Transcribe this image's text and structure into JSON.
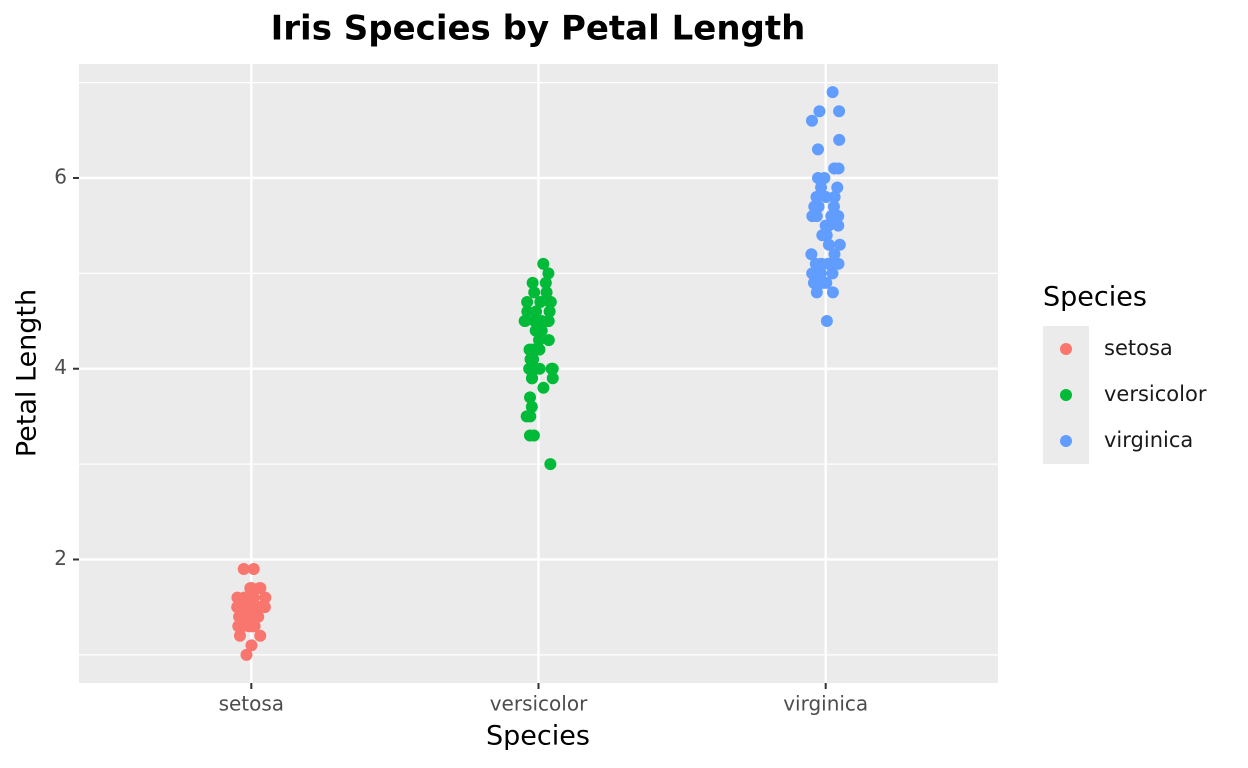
{
  "chart_data": {
    "type": "strip",
    "title": "Iris Species by Petal Length",
    "x_label": "Species",
    "y_label": "Petal Length",
    "legend_title": "Species",
    "categories": [
      "setosa",
      "versicolor",
      "virginica"
    ],
    "series": [
      {
        "name": "setosa",
        "color": "#f8766d",
        "values": [
          1.4,
          1.4,
          1.3,
          1.5,
          1.4,
          1.7,
          1.4,
          1.5,
          1.4,
          1.5,
          1.5,
          1.6,
          1.4,
          1.1,
          1.2,
          1.5,
          1.3,
          1.4,
          1.7,
          1.5,
          1.7,
          1.5,
          1.0,
          1.7,
          1.9,
          1.6,
          1.6,
          1.5,
          1.4,
          1.6,
          1.6,
          1.5,
          1.5,
          1.4,
          1.5,
          1.2,
          1.3,
          1.4,
          1.3,
          1.5,
          1.3,
          1.3,
          1.3,
          1.6,
          1.9,
          1.4,
          1.6,
          1.4,
          1.5,
          1.4
        ]
      },
      {
        "name": "versicolor",
        "color": "#00ba38",
        "values": [
          4.7,
          4.5,
          4.9,
          4.0,
          4.6,
          4.5,
          4.7,
          3.3,
          4.6,
          3.9,
          3.5,
          4.2,
          4.0,
          4.7,
          3.6,
          4.4,
          4.5,
          4.1,
          4.5,
          3.9,
          4.8,
          4.0,
          4.9,
          4.7,
          4.3,
          4.4,
          4.8,
          5.0,
          4.5,
          3.5,
          3.8,
          3.7,
          3.9,
          5.1,
          4.5,
          4.5,
          4.7,
          4.4,
          4.1,
          4.0,
          4.4,
          4.6,
          4.0,
          3.3,
          4.2,
          4.2,
          4.2,
          4.3,
          3.0,
          4.1
        ]
      },
      {
        "name": "virginica",
        "color": "#619cff",
        "values": [
          6.0,
          5.1,
          5.9,
          5.6,
          5.8,
          6.6,
          4.5,
          6.3,
          5.8,
          6.1,
          5.1,
          5.3,
          5.5,
          5.0,
          5.1,
          5.3,
          5.5,
          6.7,
          6.9,
          5.0,
          5.7,
          4.9,
          6.7,
          4.9,
          5.7,
          6.0,
          4.8,
          4.9,
          5.6,
          5.8,
          6.1,
          6.4,
          5.6,
          5.1,
          5.6,
          6.1,
          5.6,
          5.5,
          4.8,
          5.4,
          5.6,
          5.1,
          5.1,
          5.9,
          5.7,
          5.2,
          5.0,
          5.2,
          5.4,
          5.1
        ]
      }
    ],
    "ylim": [
      0.705,
      7.195
    ],
    "yticks": [
      2,
      4,
      6
    ],
    "minor_yticks": [
      1,
      3,
      5,
      7
    ],
    "grid": true,
    "legend": "right"
  }
}
